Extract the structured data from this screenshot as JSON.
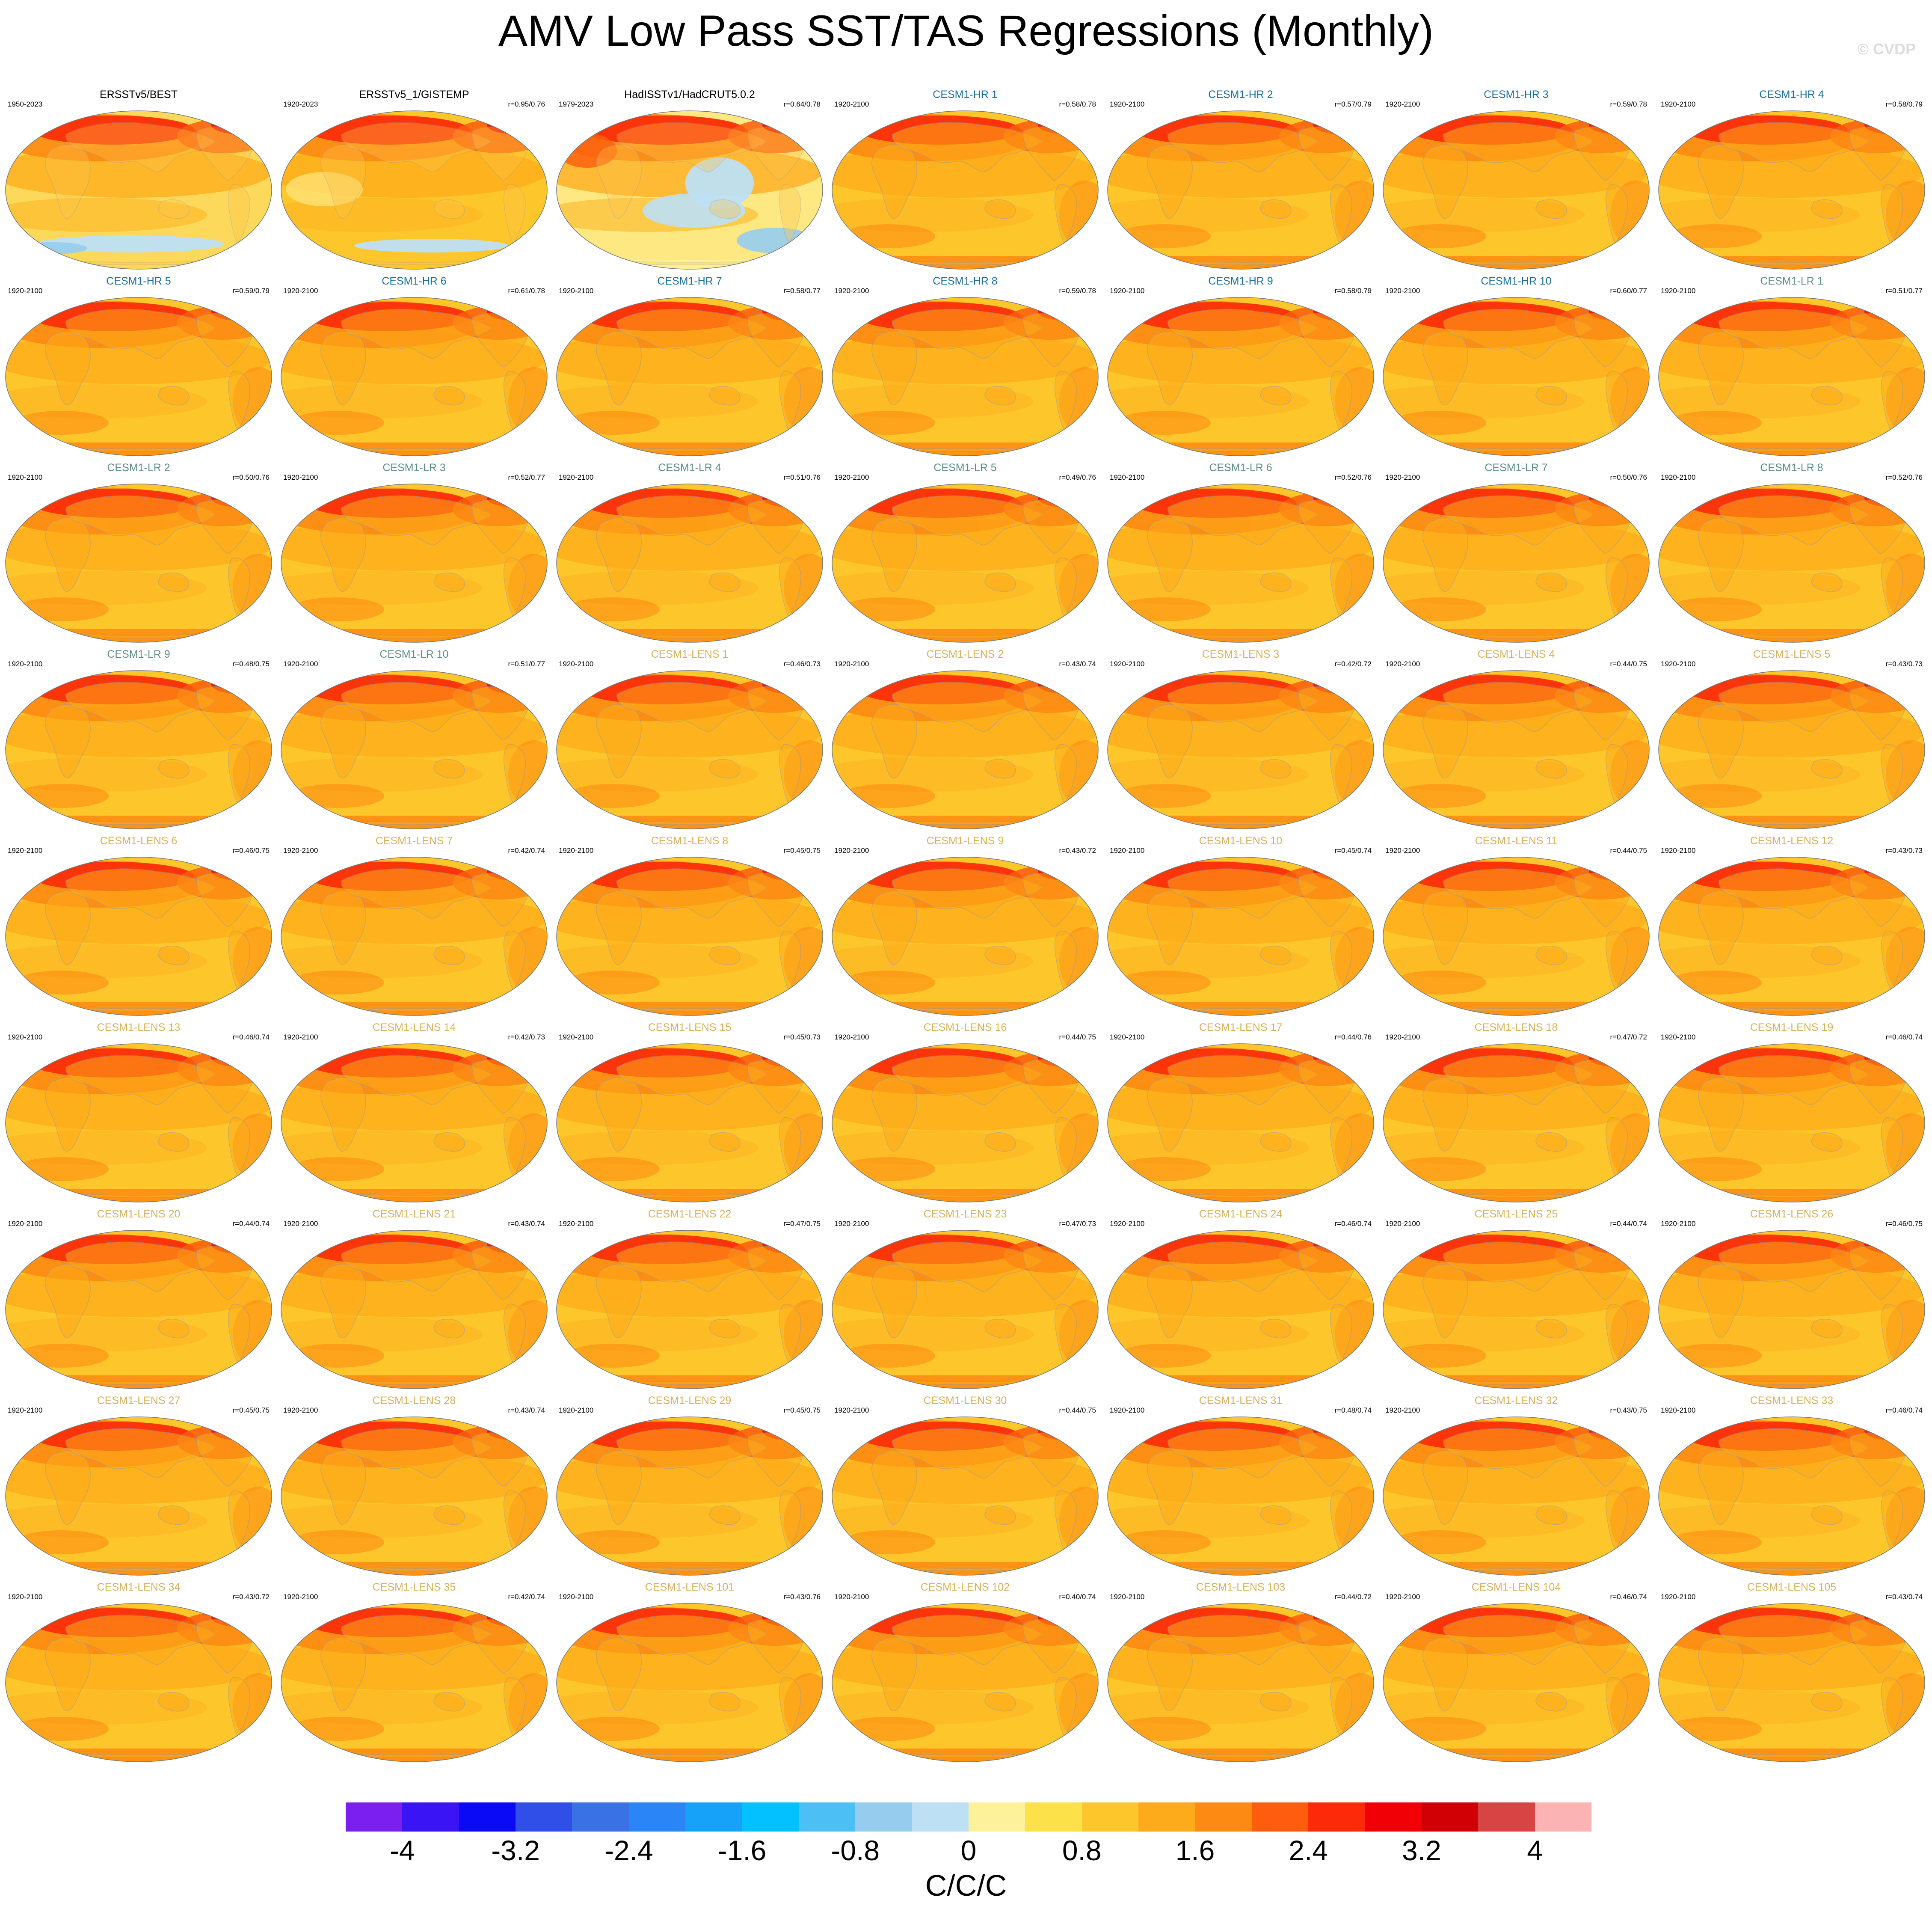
{
  "figure": {
    "title": "AMV Low Pass SST/TAS Regressions (Monthly)",
    "copyright": "© CVDP",
    "units": "C/C/C"
  },
  "colors": {
    "title_obs": "#000000",
    "title_hr": "#1a6fa0",
    "title_lr": "#5f8f86",
    "title_lens": "#d8b25a"
  },
  "panels": [
    {
      "title": "ERSSTv5/BEST",
      "years": "1950-2023",
      "corr": "",
      "group": "obs",
      "style": "obs1"
    },
    {
      "title": "ERSSTv5_1/GISTEMP",
      "years": "1920-2023",
      "corr": "r=0.95/0.76",
      "group": "obs",
      "style": "obs2"
    },
    {
      "title": "HadISSTv1/HadCRUT5.0.2",
      "years": "1979-2023",
      "corr": "r=0.64/0.78",
      "group": "obs",
      "style": "obs3"
    },
    {
      "title": "CESM1-HR 1",
      "years": "1920-2100",
      "corr": "r=0.58/0.78",
      "group": "hr",
      "style": "model"
    },
    {
      "title": "CESM1-HR 2",
      "years": "1920-2100",
      "corr": "r=0.57/0.79",
      "group": "hr",
      "style": "model"
    },
    {
      "title": "CESM1-HR 3",
      "years": "1920-2100",
      "corr": "r=0.59/0.78",
      "group": "hr",
      "style": "model"
    },
    {
      "title": "CESM1-HR 4",
      "years": "1920-2100",
      "corr": "r=0.58/0.79",
      "group": "hr",
      "style": "model"
    },
    {
      "title": "CESM1-HR 5",
      "years": "1920-2100",
      "corr": "r=0.59/0.79",
      "group": "hr",
      "style": "model"
    },
    {
      "title": "CESM1-HR 6",
      "years": "1920-2100",
      "corr": "r=0.61/0.78",
      "group": "hr",
      "style": "model"
    },
    {
      "title": "CESM1-HR 7",
      "years": "1920-2100",
      "corr": "r=0.58/0.77",
      "group": "hr",
      "style": "model"
    },
    {
      "title": "CESM1-HR 8",
      "years": "1920-2100",
      "corr": "r=0.59/0.78",
      "group": "hr",
      "style": "model"
    },
    {
      "title": "CESM1-HR 9",
      "years": "1920-2100",
      "corr": "r=0.58/0.79",
      "group": "hr",
      "style": "model"
    },
    {
      "title": "CESM1-HR 10",
      "years": "1920-2100",
      "corr": "r=0.60/0.77",
      "group": "hr",
      "style": "model"
    },
    {
      "title": "CESM1-LR 1",
      "years": "1920-2100",
      "corr": "r=0.51/0.77",
      "group": "lr",
      "style": "model"
    },
    {
      "title": "CESM1-LR 2",
      "years": "1920-2100",
      "corr": "r=0.50/0.76",
      "group": "lr",
      "style": "model"
    },
    {
      "title": "CESM1-LR 3",
      "years": "1920-2100",
      "corr": "r=0.52/0.77",
      "group": "lr",
      "style": "model"
    },
    {
      "title": "CESM1-LR 4",
      "years": "1920-2100",
      "corr": "r=0.51/0.76",
      "group": "lr",
      "style": "model"
    },
    {
      "title": "CESM1-LR 5",
      "years": "1920-2100",
      "corr": "r=0.49/0.76",
      "group": "lr",
      "style": "model"
    },
    {
      "title": "CESM1-LR 6",
      "years": "1920-2100",
      "corr": "r=0.52/0.76",
      "group": "lr",
      "style": "model"
    },
    {
      "title": "CESM1-LR 7",
      "years": "1920-2100",
      "corr": "r=0.50/0.76",
      "group": "lr",
      "style": "model"
    },
    {
      "title": "CESM1-LR 8",
      "years": "1920-2100",
      "corr": "r=0.52/0.76",
      "group": "lr",
      "style": "model"
    },
    {
      "title": "CESM1-LR 9",
      "years": "1920-2100",
      "corr": "r=0.48/0.75",
      "group": "lr",
      "style": "model"
    },
    {
      "title": "CESM1-LR 10",
      "years": "1920-2100",
      "corr": "r=0.51/0.77",
      "group": "lr",
      "style": "model"
    },
    {
      "title": "CESM1-LENS 1",
      "years": "1920-2100",
      "corr": "r=0.46/0.73",
      "group": "lens",
      "style": "model"
    },
    {
      "title": "CESM1-LENS 2",
      "years": "1920-2100",
      "corr": "r=0.43/0.74",
      "group": "lens",
      "style": "model"
    },
    {
      "title": "CESM1-LENS 3",
      "years": "1920-2100",
      "corr": "r=0.42/0.72",
      "group": "lens",
      "style": "model"
    },
    {
      "title": "CESM1-LENS 4",
      "years": "1920-2100",
      "corr": "r=0.44/0.75",
      "group": "lens",
      "style": "model"
    },
    {
      "title": "CESM1-LENS 5",
      "years": "1920-2100",
      "corr": "r=0.43/0.73",
      "group": "lens",
      "style": "model"
    },
    {
      "title": "CESM1-LENS 6",
      "years": "1920-2100",
      "corr": "r=0.46/0.75",
      "group": "lens",
      "style": "model"
    },
    {
      "title": "CESM1-LENS 7",
      "years": "1920-2100",
      "corr": "r=0.42/0.74",
      "group": "lens",
      "style": "model"
    },
    {
      "title": "CESM1-LENS 8",
      "years": "1920-2100",
      "corr": "r=0.45/0.75",
      "group": "lens",
      "style": "model"
    },
    {
      "title": "CESM1-LENS 9",
      "years": "1920-2100",
      "corr": "r=0.43/0.72",
      "group": "lens",
      "style": "model"
    },
    {
      "title": "CESM1-LENS 10",
      "years": "1920-2100",
      "corr": "r=0.45/0.74",
      "group": "lens",
      "style": "model"
    },
    {
      "title": "CESM1-LENS 11",
      "years": "1920-2100",
      "corr": "r=0.44/0.75",
      "group": "lens",
      "style": "model"
    },
    {
      "title": "CESM1-LENS 12",
      "years": "1920-2100",
      "corr": "r=0.43/0.73",
      "group": "lens",
      "style": "model"
    },
    {
      "title": "CESM1-LENS 13",
      "years": "1920-2100",
      "corr": "r=0.46/0.74",
      "group": "lens",
      "style": "model"
    },
    {
      "title": "CESM1-LENS 14",
      "years": "1920-2100",
      "corr": "r=0.42/0.73",
      "group": "lens",
      "style": "model"
    },
    {
      "title": "CESM1-LENS 15",
      "years": "1920-2100",
      "corr": "r=0.45/0.73",
      "group": "lens",
      "style": "model"
    },
    {
      "title": "CESM1-LENS 16",
      "years": "1920-2100",
      "corr": "r=0.44/0.75",
      "group": "lens",
      "style": "model"
    },
    {
      "title": "CESM1-LENS 17",
      "years": "1920-2100",
      "corr": "r=0.44/0.76",
      "group": "lens",
      "style": "model"
    },
    {
      "title": "CESM1-LENS 18",
      "years": "1920-2100",
      "corr": "r=0.47/0.72",
      "group": "lens",
      "style": "model"
    },
    {
      "title": "CESM1-LENS 19",
      "years": "1920-2100",
      "corr": "r=0.46/0.74",
      "group": "lens",
      "style": "model"
    },
    {
      "title": "CESM1-LENS 20",
      "years": "1920-2100",
      "corr": "r=0.44/0.74",
      "group": "lens",
      "style": "model"
    },
    {
      "title": "CESM1-LENS 21",
      "years": "1920-2100",
      "corr": "r=0.43/0.74",
      "group": "lens",
      "style": "model"
    },
    {
      "title": "CESM1-LENS 22",
      "years": "1920-2100",
      "corr": "r=0.47/0.75",
      "group": "lens",
      "style": "model"
    },
    {
      "title": "CESM1-LENS 23",
      "years": "1920-2100",
      "corr": "r=0.47/0.73",
      "group": "lens",
      "style": "model"
    },
    {
      "title": "CESM1-LENS 24",
      "years": "1920-2100",
      "corr": "r=0.46/0.74",
      "group": "lens",
      "style": "model"
    },
    {
      "title": "CESM1-LENS 25",
      "years": "1920-2100",
      "corr": "r=0.44/0.74",
      "group": "lens",
      "style": "model"
    },
    {
      "title": "CESM1-LENS 26",
      "years": "1920-2100",
      "corr": "r=0.46/0.75",
      "group": "lens",
      "style": "model"
    },
    {
      "title": "CESM1-LENS 27",
      "years": "1920-2100",
      "corr": "r=0.45/0.75",
      "group": "lens",
      "style": "model"
    },
    {
      "title": "CESM1-LENS 28",
      "years": "1920-2100",
      "corr": "r=0.43/0.74",
      "group": "lens",
      "style": "model"
    },
    {
      "title": "CESM1-LENS 29",
      "years": "1920-2100",
      "corr": "r=0.45/0.75",
      "group": "lens",
      "style": "model"
    },
    {
      "title": "CESM1-LENS 30",
      "years": "1920-2100",
      "corr": "r=0.44/0.75",
      "group": "lens",
      "style": "model"
    },
    {
      "title": "CESM1-LENS 31",
      "years": "1920-2100",
      "corr": "r=0.48/0.74",
      "group": "lens",
      "style": "model"
    },
    {
      "title": "CESM1-LENS 32",
      "years": "1920-2100",
      "corr": "r=0.43/0.75",
      "group": "lens",
      "style": "model"
    },
    {
      "title": "CESM1-LENS 33",
      "years": "1920-2100",
      "corr": "r=0.46/0.74",
      "group": "lens",
      "style": "model"
    },
    {
      "title": "CESM1-LENS 34",
      "years": "1920-2100",
      "corr": "r=0.43/0.72",
      "group": "lens",
      "style": "model"
    },
    {
      "title": "CESM1-LENS 35",
      "years": "1920-2100",
      "corr": "r=0.42/0.74",
      "group": "lens",
      "style": "model"
    },
    {
      "title": "CESM1-LENS 101",
      "years": "1920-2100",
      "corr": "r=0.43/0.76",
      "group": "lens",
      "style": "model"
    },
    {
      "title": "CESM1-LENS 102",
      "years": "1920-2100",
      "corr": "r=0.40/0.74",
      "group": "lens",
      "style": "model"
    },
    {
      "title": "CESM1-LENS 103",
      "years": "1920-2100",
      "corr": "r=0.44/0.72",
      "group": "lens",
      "style": "model"
    },
    {
      "title": "CESM1-LENS 104",
      "years": "1920-2100",
      "corr": "r=0.46/0.74",
      "group": "lens",
      "style": "model"
    },
    {
      "title": "CESM1-LENS 105",
      "years": "1920-2100",
      "corr": "r=0.43/0.74",
      "group": "lens",
      "style": "model"
    }
  ],
  "colorbar": {
    "colors": [
      "#7b1ff0",
      "#3a14f4",
      "#0a0af6",
      "#2f4fe8",
      "#3a72e6",
      "#2a86f6",
      "#17a2fa",
      "#03c0ff",
      "#4cc0f5",
      "#96cdef",
      "#bde0f5",
      "#fdf29a",
      "#fde148",
      "#fdc72b",
      "#fdab1a",
      "#fd8a12",
      "#fd5d0c",
      "#fc2a08",
      "#f10005",
      "#d00004",
      "#d84444",
      "#fcb3b3"
    ],
    "ticks": [
      "-4",
      "-3.2",
      "-2.4",
      "-1.6",
      "-0.8",
      "0",
      "0.8",
      "1.6",
      "2.4",
      "3.2",
      "4"
    ]
  }
}
